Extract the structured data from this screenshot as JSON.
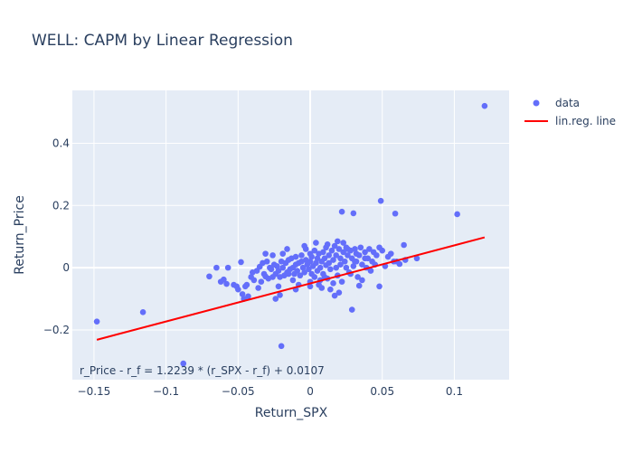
{
  "chart_data": {
    "type": "scatter",
    "title": "WELL: CAPM by Linear Regression",
    "xlabel": "Return_SPX",
    "ylabel": "Return_Price",
    "xlim": [
      -0.165,
      0.138
    ],
    "ylim": [
      -0.36,
      0.57
    ],
    "x_ticks": [
      -0.15,
      -0.1,
      -0.05,
      0,
      0.05,
      0.1
    ],
    "x_tick_labels": [
      "−0.15",
      "−0.1",
      "−0.05",
      "0",
      "0.05",
      "0.1"
    ],
    "y_ticks": [
      -0.2,
      0,
      0.2,
      0.4
    ],
    "y_tick_labels": [
      "−0.2",
      "0",
      "0.2",
      "0.4"
    ],
    "grid": true,
    "legend_position": "top-right",
    "colors": {
      "data": "#636efa",
      "line": "#ff0000",
      "plot_bg": "#e5ecf6",
      "text": "#2a3f5f"
    },
    "series": [
      {
        "name": "data",
        "mode": "markers",
        "points": [
          [
            -0.148,
            -0.173
          ],
          [
            -0.116,
            -0.143
          ],
          [
            -0.088,
            -0.308
          ],
          [
            -0.07,
            -0.028
          ],
          [
            -0.06,
            -0.038
          ],
          [
            -0.058,
            -0.052
          ],
          [
            -0.057,
            0.0
          ],
          [
            -0.053,
            -0.055
          ],
          [
            -0.051,
            -0.06
          ],
          [
            -0.05,
            -0.07
          ],
          [
            -0.048,
            0.018
          ],
          [
            -0.047,
            -0.085
          ],
          [
            -0.046,
            -0.1
          ],
          [
            -0.045,
            -0.06
          ],
          [
            -0.043,
            -0.092
          ],
          [
            -0.041,
            -0.03
          ],
          [
            -0.04,
            -0.015
          ],
          [
            -0.039,
            -0.04
          ],
          [
            -0.037,
            -0.01
          ],
          [
            -0.035,
            0.003
          ],
          [
            -0.034,
            -0.045
          ],
          [
            -0.032,
            -0.02
          ],
          [
            -0.031,
            -0.028
          ],
          [
            -0.03,
            0.02
          ],
          [
            -0.029,
            -0.035
          ],
          [
            -0.028,
            0.0
          ],
          [
            -0.027,
            -0.005
          ],
          [
            -0.026,
            -0.03
          ],
          [
            -0.025,
            0.01
          ],
          [
            -0.024,
            -0.02
          ],
          [
            -0.023,
            0.005
          ],
          [
            -0.022,
            -0.01
          ],
          [
            -0.021,
            -0.03
          ],
          [
            -0.021,
            -0.088
          ],
          [
            -0.02,
            -0.252
          ],
          [
            -0.02,
            0.02
          ],
          [
            -0.019,
            0.0
          ],
          [
            -0.018,
            -0.025
          ],
          [
            -0.017,
            0.015
          ],
          [
            -0.016,
            -0.015
          ],
          [
            -0.015,
            0.025
          ],
          [
            -0.014,
            -0.005
          ],
          [
            -0.013,
            0.03
          ],
          [
            -0.012,
            0.0
          ],
          [
            -0.012,
            -0.04
          ],
          [
            -0.011,
            -0.02
          ],
          [
            -0.01,
            0.01
          ],
          [
            -0.01,
            0.035
          ],
          [
            -0.009,
            -0.01
          ],
          [
            -0.008,
            0.015
          ],
          [
            -0.007,
            -0.025
          ],
          [
            -0.006,
            0.02
          ],
          [
            -0.006,
            0.04
          ],
          [
            -0.005,
            0.0
          ],
          [
            -0.004,
            -0.015
          ],
          [
            -0.003,
            0.025
          ],
          [
            -0.003,
            0.06
          ],
          [
            -0.002,
            0.01
          ],
          [
            -0.001,
            -0.005
          ],
          [
            0.0,
            0.02
          ],
          [
            0.0,
            0.045
          ],
          [
            0.001,
            -0.02
          ],
          [
            0.001,
            0.035
          ],
          [
            0.002,
            0.005
          ],
          [
            0.003,
            0.055
          ],
          [
            0.003,
            -0.03
          ],
          [
            0.004,
            0.015
          ],
          [
            0.005,
            0.03
          ],
          [
            0.005,
            -0.01
          ],
          [
            0.006,
            0.045
          ],
          [
            0.007,
            0.0
          ],
          [
            0.007,
            -0.04
          ],
          [
            0.008,
            0.02
          ],
          [
            0.009,
            0.05
          ],
          [
            0.009,
            -0.02
          ],
          [
            0.01,
            0.03
          ],
          [
            0.011,
            0.008
          ],
          [
            0.011,
            0.065
          ],
          [
            0.012,
            -0.035
          ],
          [
            0.013,
            0.04
          ],
          [
            0.013,
            0.015
          ],
          [
            0.014,
            -0.005
          ],
          [
            0.015,
            0.055
          ],
          [
            0.016,
            0.025
          ],
          [
            0.016,
            -0.05
          ],
          [
            0.017,
            0.07
          ],
          [
            0.018,
            0.04
          ],
          [
            0.018,
            0.0
          ],
          [
            0.019,
            -0.025
          ],
          [
            0.02,
            0.06
          ],
          [
            0.021,
            0.03
          ],
          [
            0.021,
            0.01
          ],
          [
            0.022,
            -0.045
          ],
          [
            0.023,
            0.05
          ],
          [
            0.024,
            0.02
          ],
          [
            0.025,
            0.065
          ],
          [
            0.025,
            0.0
          ],
          [
            0.026,
            0.04
          ],
          [
            0.027,
            -0.015
          ],
          [
            0.028,
            0.055
          ],
          [
            0.029,
            0.03
          ],
          [
            0.03,
            0.005
          ],
          [
            0.031,
            0.06
          ],
          [
            0.032,
            0.02
          ],
          [
            0.033,
            -0.03
          ],
          [
            0.034,
            0.04
          ],
          [
            0.035,
            0.065
          ],
          [
            0.036,
            0.01
          ],
          [
            0.038,
            0.05
          ],
          [
            0.039,
            0.0
          ],
          [
            0.04,
            0.03
          ],
          [
            0.041,
            0.06
          ],
          [
            0.043,
            0.02
          ],
          [
            0.044,
            0.05
          ],
          [
            0.045,
            0.01
          ],
          [
            -0.065,
            0.0
          ],
          [
            -0.062,
            -0.045
          ],
          [
            -0.044,
            -0.055
          ],
          [
            -0.036,
            -0.065
          ],
          [
            -0.033,
            0.015
          ],
          [
            -0.019,
            0.045
          ],
          [
            -0.016,
            0.06
          ],
          [
            -0.008,
            -0.055
          ],
          [
            -0.004,
            0.07
          ],
          [
            0.0,
            -0.045
          ],
          [
            0.004,
            0.08
          ],
          [
            0.008,
            -0.065
          ],
          [
            0.012,
            0.075
          ],
          [
            0.014,
            -0.07
          ],
          [
            0.017,
            -0.09
          ],
          [
            0.019,
            0.085
          ],
          [
            0.02,
            -0.08
          ],
          [
            0.023,
            0.08
          ],
          [
            0.026,
            0.06
          ],
          [
            0.028,
            -0.02
          ],
          [
            0.031,
            0.02
          ],
          [
            0.032,
            0.045
          ],
          [
            0.034,
            -0.058
          ],
          [
            0.036,
            -0.04
          ],
          [
            0.038,
            0.03
          ],
          [
            0.042,
            -0.01
          ],
          [
            0.046,
            0.04
          ],
          [
            0.048,
            0.065
          ],
          [
            0.048,
            -0.06
          ],
          [
            0.05,
            0.055
          ],
          [
            0.052,
            0.005
          ],
          [
            0.054,
            0.035
          ],
          [
            0.056,
            0.045
          ],
          [
            0.058,
            0.02
          ],
          [
            -0.022,
            -0.06
          ],
          [
            -0.026,
            0.04
          ],
          [
            -0.031,
            0.045
          ],
          [
            0.0,
            -0.06
          ],
          [
            0.006,
            -0.055
          ],
          [
            0.01,
            -0.03
          ],
          [
            0.022,
            0.18
          ],
          [
            0.03,
            0.175
          ],
          [
            0.049,
            0.215
          ],
          [
            0.059,
            0.174
          ],
          [
            0.065,
            0.073
          ],
          [
            0.074,
            0.03
          ],
          [
            0.066,
            0.025
          ],
          [
            0.062,
            0.012
          ],
          [
            0.102,
            0.172
          ],
          [
            0.121,
            0.52
          ],
          [
            0.029,
            -0.135
          ],
          [
            -0.024,
            -0.1
          ],
          [
            -0.015,
            -0.02
          ],
          [
            0.06,
            0.02
          ],
          [
            -0.01,
            -0.07
          ]
        ]
      },
      {
        "name": "lin.reg. line",
        "mode": "line",
        "x": [
          -0.148,
          0.121
        ],
        "y": [
          -0.2317,
          0.0975
        ]
      }
    ],
    "annotations": [
      {
        "text": "r_Price - r_f = 1.2239 * (r_SPX - r_f) + 0.0107",
        "anchor": "bottom-left"
      }
    ]
  }
}
